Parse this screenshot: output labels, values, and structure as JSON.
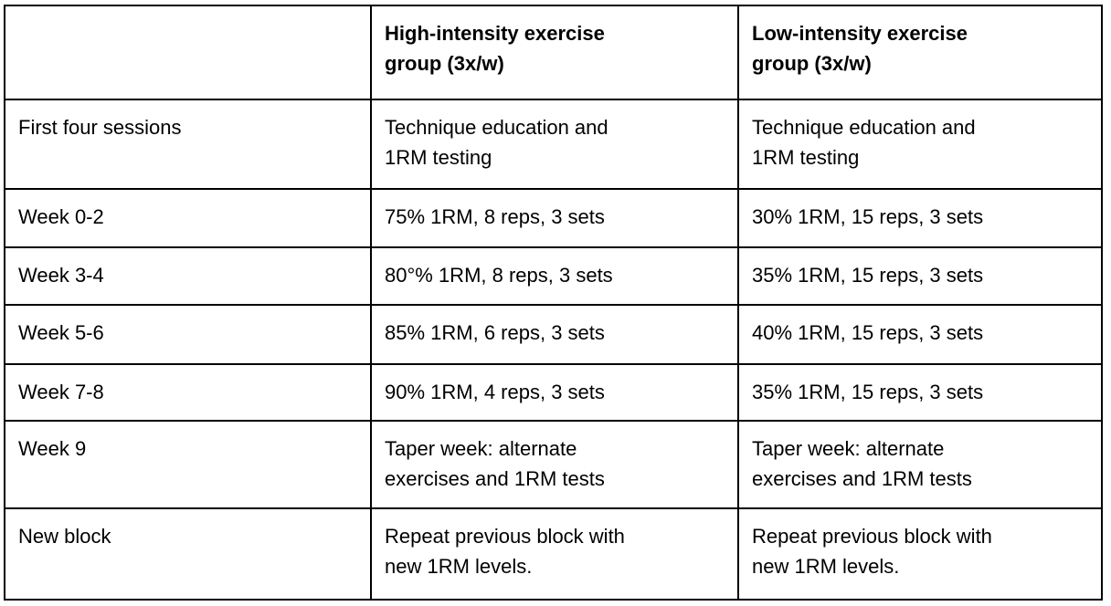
{
  "colors": {
    "border": "#000000",
    "background": "#ffffff",
    "text": "#000000"
  },
  "table": {
    "columns": [
      {
        "label": ""
      },
      {
        "label": "High-intensity exercise\ngroup (3x/w)"
      },
      {
        "label": "Low-intensity exercise\ngroup (3x/w)"
      }
    ],
    "rows": [
      {
        "label": "First four sessions",
        "high": "Technique education and\n1RM testing",
        "low": "Technique education and\n1RM testing"
      },
      {
        "label": "Week 0-2",
        "high": "75% 1RM, 8 reps, 3 sets",
        "low": "30% 1RM, 15 reps, 3 sets"
      },
      {
        "label": "Week 3-4",
        "high": "80°% 1RM, 8 reps, 3 sets",
        "low": "35% 1RM, 15 reps, 3 sets"
      },
      {
        "label": "Week 5-6",
        "high": "85% 1RM, 6 reps, 3 sets",
        "low": "40% 1RM, 15 reps, 3 sets"
      },
      {
        "label": "Week 7-8",
        "high": "90% 1RM, 4 reps, 3 sets",
        "low": "35% 1RM, 15 reps, 3 sets"
      },
      {
        "label": "Week 9",
        "high": "Taper week: alternate\nexercises and 1RM tests",
        "low": "Taper week: alternate\nexercises and 1RM tests"
      },
      {
        "label": "New block",
        "high": "Repeat previous block with\nnew 1RM levels.",
        "low": "Repeat previous block with\nnew 1RM levels."
      }
    ]
  }
}
